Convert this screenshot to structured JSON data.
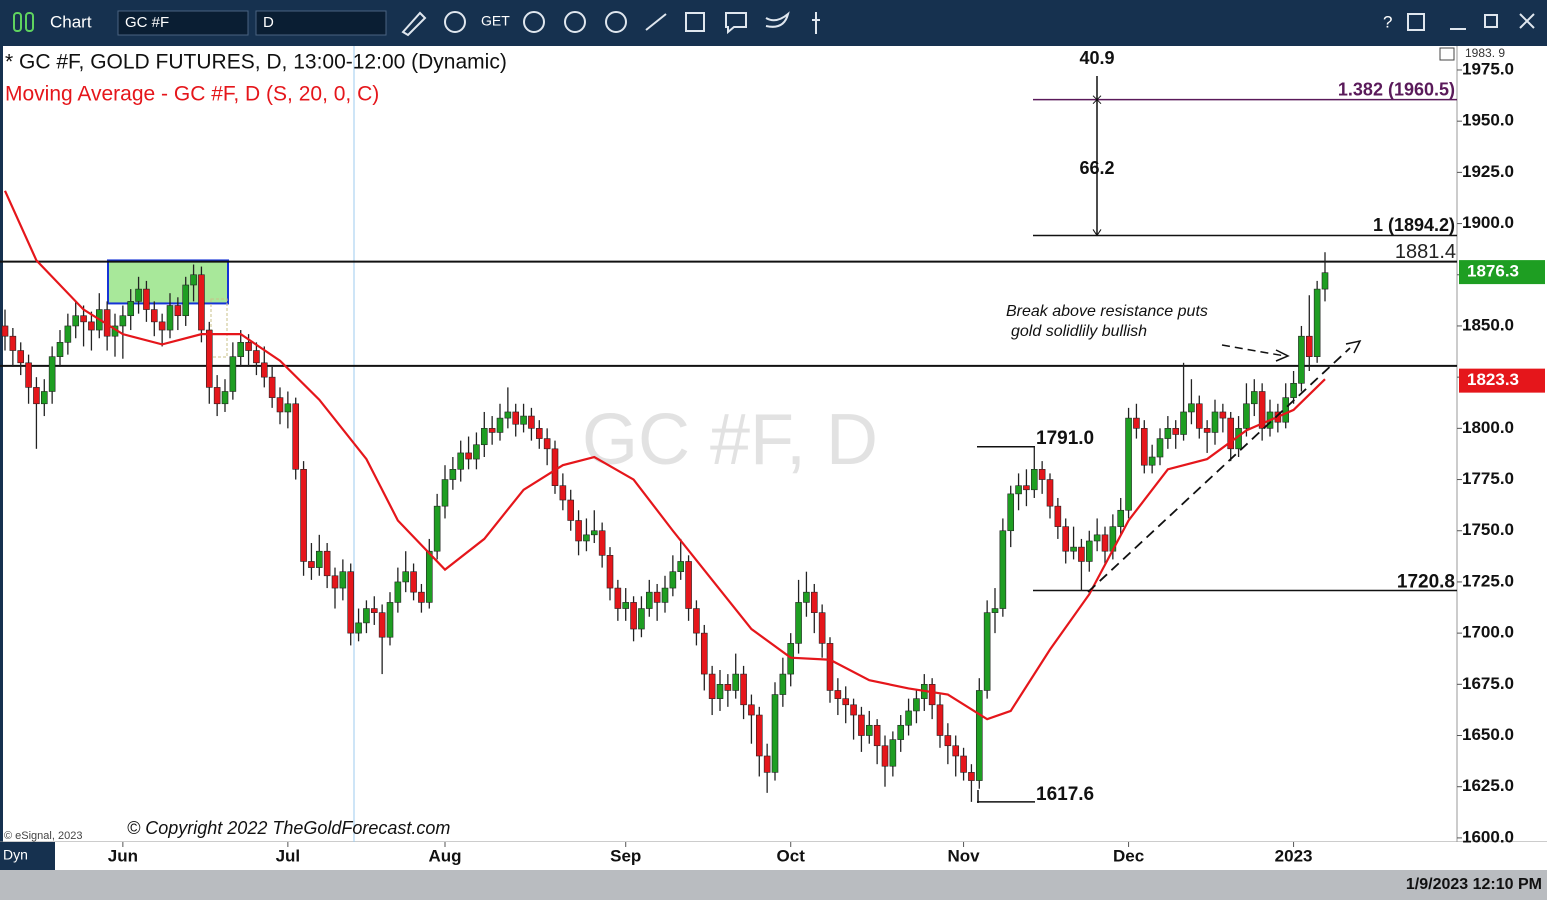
{
  "toolbar": {
    "app": "Chart",
    "symbol": "GC #F",
    "interval": "D",
    "get": "GET"
  },
  "chart_data": {
    "type": "candlestick",
    "title": "* GC #F, GOLD FUTURES, D, 13:00-12:00 (Dynamic)",
    "subtitle": "Moving Average - GC #F, D (S, 20, 0, C)",
    "watermark": "GC #F, D",
    "copyright": "© Copyright 2022 TheGoldForecast.com",
    "annotation": [
      "Break above resistance puts",
      "gold solidlily bullish"
    ],
    "up_color": "#1e9e22",
    "down_color": "#e5161b",
    "ylim": [
      1598,
      1987.2
    ],
    "yticks": [
      {
        "value": 1600,
        "label": "1600.0"
      },
      {
        "value": 1625,
        "label": "1625.0"
      },
      {
        "value": 1650,
        "label": "1650.0"
      },
      {
        "value": 1675,
        "label": "1675.0"
      },
      {
        "value": 1700,
        "label": "1700.0"
      },
      {
        "value": 1725,
        "label": "1725.0"
      },
      {
        "value": 1750,
        "label": "1750.0"
      },
      {
        "value": 1775,
        "label": "1775.0"
      },
      {
        "value": 1800,
        "label": "1800.0"
      },
      {
        "value": 1825,
        "label": "1825.0"
      },
      {
        "value": 1850,
        "label": "1850.0"
      },
      {
        "value": 1875,
        "label": "1875.0"
      },
      {
        "value": 1900,
        "label": "1900.0"
      },
      {
        "value": 1925,
        "label": "1925.0"
      },
      {
        "value": 1950,
        "label": "1950.0"
      },
      {
        "value": 1975,
        "label": "1975.0"
      }
    ],
    "xlim": [
      0,
      168
    ],
    "xticks": [
      {
        "value": 15,
        "label": "Jun"
      },
      {
        "value": 36,
        "label": "Jul"
      },
      {
        "value": 56,
        "label": "Aug"
      },
      {
        "value": 79,
        "label": "Sep"
      },
      {
        "value": 100,
        "label": "Oct"
      },
      {
        "value": 122,
        "label": "Nov"
      },
      {
        "value": 143,
        "label": "Dec"
      },
      {
        "value": 164,
        "label": "2023"
      }
    ],
    "top_value": {
      "value": 1983.9,
      "label": "1983. 9"
    },
    "last_price": 1876.3,
    "ma_last": 1823.3,
    "levels": [
      1881.4,
      1830.5
    ],
    "fib_levels": [
      {
        "value": 1894.2,
        "label": "1 (1894.2)"
      },
      {
        "value": 1960.5,
        "label": "1.382 (1960.5)"
      }
    ],
    "measures": [
      40.9,
      66.2
    ],
    "swings": [
      {
        "value": 1791,
        "label": "1791.0"
      },
      1720.8,
      1617.6
    ],
    "resistance_box": [
      1882,
      1861
    ],
    "ma": {
      "color": "#e5161b",
      "x": [
        0,
        4,
        10,
        15,
        20,
        25,
        30,
        35,
        40,
        46,
        50,
        56,
        61,
        66,
        71,
        75,
        80,
        85,
        90,
        95,
        100,
        105,
        110,
        115,
        120,
        125,
        128,
        133,
        138,
        143,
        148,
        153,
        158,
        164,
        168
      ],
      "values": [
        1916,
        1882,
        1858,
        1846,
        1841,
        1846,
        1846,
        1833,
        1814,
        1785,
        1755,
        1731,
        1746,
        1770,
        1782,
        1786,
        1775,
        1750,
        1726,
        1702,
        1688,
        1687,
        1677,
        1673,
        1670,
        1658,
        1662,
        1692,
        1719,
        1755,
        1780,
        1785,
        1799,
        1809,
        1824
      ]
    },
    "ohlc": [
      [
        1850,
        1858,
        1838,
        1845
      ],
      [
        1845,
        1849,
        1830,
        1838
      ],
      [
        1838,
        1842,
        1826,
        1832
      ],
      [
        1832,
        1836,
        1812,
        1820
      ],
      [
        1820,
        1825,
        1790,
        1812
      ],
      [
        1812,
        1824,
        1806,
        1818
      ],
      [
        1818,
        1840,
        1812,
        1835
      ],
      [
        1835,
        1848,
        1830,
        1842
      ],
      [
        1842,
        1856,
        1836,
        1850
      ],
      [
        1850,
        1862,
        1844,
        1855
      ],
      [
        1855,
        1860,
        1840,
        1852
      ],
      [
        1852,
        1857,
        1838,
        1848
      ],
      [
        1848,
        1866,
        1844,
        1858
      ],
      [
        1858,
        1862,
        1838,
        1845
      ],
      [
        1845,
        1856,
        1835,
        1850
      ],
      [
        1850,
        1860,
        1834,
        1855
      ],
      [
        1855,
        1868,
        1848,
        1862
      ],
      [
        1862,
        1874,
        1856,
        1868
      ],
      [
        1868,
        1872,
        1852,
        1858
      ],
      [
        1858,
        1862,
        1845,
        1852
      ],
      [
        1852,
        1856,
        1840,
        1848
      ],
      [
        1848,
        1866,
        1844,
        1860
      ],
      [
        1860,
        1864,
        1848,
        1855
      ],
      [
        1855,
        1874,
        1850,
        1870
      ],
      [
        1870,
        1880,
        1862,
        1875
      ],
      [
        1875,
        1879,
        1842,
        1848
      ],
      [
        1848,
        1852,
        1812,
        1820
      ],
      [
        1820,
        1826,
        1806,
        1812
      ],
      [
        1812,
        1824,
        1808,
        1818
      ],
      [
        1818,
        1842,
        1814,
        1835
      ],
      [
        1835,
        1848,
        1830,
        1842
      ],
      [
        1842,
        1846,
        1830,
        1838
      ],
      [
        1838,
        1842,
        1826,
        1832
      ],
      [
        1832,
        1840,
        1820,
        1825
      ],
      [
        1825,
        1830,
        1810,
        1815
      ],
      [
        1815,
        1820,
        1802,
        1808
      ],
      [
        1808,
        1818,
        1800,
        1812
      ],
      [
        1812,
        1815,
        1775,
        1780
      ],
      [
        1780,
        1784,
        1728,
        1735
      ],
      [
        1735,
        1744,
        1726,
        1732
      ],
      [
        1732,
        1748,
        1728,
        1740
      ],
      [
        1740,
        1744,
        1722,
        1728
      ],
      [
        1728,
        1732,
        1712,
        1722
      ],
      [
        1722,
        1736,
        1716,
        1730
      ],
      [
        1730,
        1734,
        1694,
        1700
      ],
      [
        1700,
        1712,
        1696,
        1705
      ],
      [
        1705,
        1716,
        1700,
        1712
      ],
      [
        1712,
        1718,
        1704,
        1710
      ],
      [
        1710,
        1714,
        1680,
        1698
      ],
      [
        1698,
        1720,
        1694,
        1715
      ],
      [
        1715,
        1732,
        1710,
        1725
      ],
      [
        1725,
        1740,
        1720,
        1730
      ],
      [
        1730,
        1734,
        1716,
        1720
      ],
      [
        1720,
        1724,
        1710,
        1715
      ],
      [
        1715,
        1746,
        1712,
        1740
      ],
      [
        1740,
        1768,
        1736,
        1762
      ],
      [
        1762,
        1782,
        1756,
        1775
      ],
      [
        1775,
        1786,
        1770,
        1780
      ],
      [
        1780,
        1794,
        1774,
        1788
      ],
      [
        1788,
        1796,
        1780,
        1785
      ],
      [
        1785,
        1798,
        1780,
        1792
      ],
      [
        1792,
        1808,
        1786,
        1800
      ],
      [
        1800,
        1806,
        1792,
        1798
      ],
      [
        1798,
        1812,
        1794,
        1805
      ],
      [
        1805,
        1820,
        1800,
        1808
      ],
      [
        1808,
        1812,
        1796,
        1802
      ],
      [
        1802,
        1812,
        1798,
        1806
      ],
      [
        1806,
        1810,
        1794,
        1800
      ],
      [
        1800,
        1804,
        1790,
        1795
      ],
      [
        1795,
        1800,
        1782,
        1790
      ],
      [
        1790,
        1794,
        1768,
        1772
      ],
      [
        1772,
        1778,
        1760,
        1765
      ],
      [
        1765,
        1770,
        1750,
        1755
      ],
      [
        1755,
        1760,
        1738,
        1745
      ],
      [
        1745,
        1756,
        1740,
        1748
      ],
      [
        1748,
        1760,
        1744,
        1750
      ],
      [
        1750,
        1754,
        1732,
        1738
      ],
      [
        1738,
        1742,
        1716,
        1722
      ],
      [
        1722,
        1726,
        1706,
        1712
      ],
      [
        1712,
        1722,
        1706,
        1715
      ],
      [
        1715,
        1718,
        1696,
        1702
      ],
      [
        1702,
        1718,
        1698,
        1712
      ],
      [
        1712,
        1726,
        1708,
        1720
      ],
      [
        1720,
        1724,
        1706,
        1715
      ],
      [
        1715,
        1728,
        1710,
        1722
      ],
      [
        1722,
        1738,
        1718,
        1730
      ],
      [
        1730,
        1746,
        1726,
        1735
      ],
      [
        1735,
        1738,
        1706,
        1712
      ],
      [
        1712,
        1716,
        1694,
        1700
      ],
      [
        1700,
        1704,
        1672,
        1680
      ],
      [
        1680,
        1684,
        1660,
        1668
      ],
      [
        1668,
        1682,
        1662,
        1675
      ],
      [
        1675,
        1680,
        1664,
        1672
      ],
      [
        1672,
        1690,
        1668,
        1680
      ],
      [
        1680,
        1684,
        1658,
        1665
      ],
      [
        1665,
        1670,
        1646,
        1660
      ],
      [
        1660,
        1664,
        1630,
        1640
      ],
      [
        1640,
        1646,
        1622,
        1632
      ],
      [
        1632,
        1676,
        1628,
        1670
      ],
      [
        1670,
        1688,
        1664,
        1680
      ],
      [
        1680,
        1700,
        1674,
        1695
      ],
      [
        1695,
        1726,
        1690,
        1715
      ],
      [
        1715,
        1730,
        1708,
        1720
      ],
      [
        1720,
        1724,
        1700,
        1710
      ],
      [
        1710,
        1714,
        1688,
        1695
      ],
      [
        1695,
        1698,
        1666,
        1672
      ],
      [
        1672,
        1678,
        1660,
        1668
      ],
      [
        1668,
        1674,
        1656,
        1665
      ],
      [
        1665,
        1668,
        1648,
        1660
      ],
      [
        1660,
        1664,
        1642,
        1650
      ],
      [
        1650,
        1662,
        1646,
        1655
      ],
      [
        1655,
        1658,
        1636,
        1645
      ],
      [
        1645,
        1650,
        1625,
        1635
      ],
      [
        1635,
        1652,
        1630,
        1648
      ],
      [
        1648,
        1660,
        1642,
        1655
      ],
      [
        1655,
        1668,
        1650,
        1662
      ],
      [
        1662,
        1672,
        1656,
        1668
      ],
      [
        1668,
        1680,
        1662,
        1675
      ],
      [
        1675,
        1678,
        1658,
        1665
      ],
      [
        1665,
        1670,
        1644,
        1650
      ],
      [
        1650,
        1656,
        1636,
        1645
      ],
      [
        1645,
        1650,
        1630,
        1640
      ],
      [
        1640,
        1644,
        1628,
        1632
      ],
      [
        1632,
        1636,
        1617.6,
        1628
      ],
      [
        1628,
        1678,
        1624,
        1672
      ],
      [
        1672,
        1716,
        1668,
        1710
      ],
      [
        1710,
        1722,
        1700,
        1712
      ],
      [
        1712,
        1756,
        1708,
        1750
      ],
      [
        1750,
        1772,
        1742,
        1768
      ],
      [
        1768,
        1778,
        1760,
        1772
      ],
      [
        1772,
        1780,
        1762,
        1770
      ],
      [
        1770,
        1791,
        1766,
        1780
      ],
      [
        1780,
        1784,
        1768,
        1775
      ],
      [
        1775,
        1778,
        1756,
        1762
      ],
      [
        1762,
        1766,
        1746,
        1752
      ],
      [
        1752,
        1756,
        1734,
        1740
      ],
      [
        1740,
        1752,
        1736,
        1742
      ],
      [
        1742,
        1746,
        1720.8,
        1735
      ],
      [
        1735,
        1750,
        1730,
        1745
      ],
      [
        1745,
        1756,
        1740,
        1748
      ],
      [
        1748,
        1752,
        1734,
        1740
      ],
      [
        1740,
        1758,
        1736,
        1752
      ],
      [
        1752,
        1766,
        1748,
        1760
      ],
      [
        1760,
        1810,
        1756,
        1805
      ],
      [
        1805,
        1812,
        1795,
        1800
      ],
      [
        1800,
        1804,
        1778,
        1782
      ],
      [
        1782,
        1792,
        1778,
        1786
      ],
      [
        1786,
        1800,
        1782,
        1795
      ],
      [
        1795,
        1806,
        1790,
        1800
      ],
      [
        1800,
        1804,
        1790,
        1797
      ],
      [
        1797,
        1832,
        1794,
        1808
      ],
      [
        1808,
        1824,
        1802,
        1812
      ],
      [
        1812,
        1816,
        1795,
        1800
      ],
      [
        1800,
        1804,
        1788,
        1798
      ],
      [
        1798,
        1814,
        1792,
        1808
      ],
      [
        1808,
        1812,
        1798,
        1805
      ],
      [
        1805,
        1808,
        1784,
        1790
      ],
      [
        1790,
        1806,
        1786,
        1800
      ],
      [
        1800,
        1822,
        1796,
        1812
      ],
      [
        1812,
        1824,
        1806,
        1818
      ],
      [
        1818,
        1822,
        1794,
        1800
      ],
      [
        1800,
        1814,
        1796,
        1808
      ],
      [
        1808,
        1812,
        1798,
        1803
      ],
      [
        1803,
        1822,
        1800,
        1815
      ],
      [
        1815,
        1828,
        1812,
        1822
      ],
      [
        1822,
        1850,
        1818,
        1845
      ],
      [
        1845,
        1865,
        1828,
        1835
      ],
      [
        1835,
        1872,
        1832,
        1868
      ],
      [
        1868,
        1886,
        1862,
        1876
      ]
    ]
  },
  "footer": {
    "esignal": "© eSignal, 2023",
    "mode": "Dyn",
    "datetime": "1/9/2023 12:10 PM"
  }
}
